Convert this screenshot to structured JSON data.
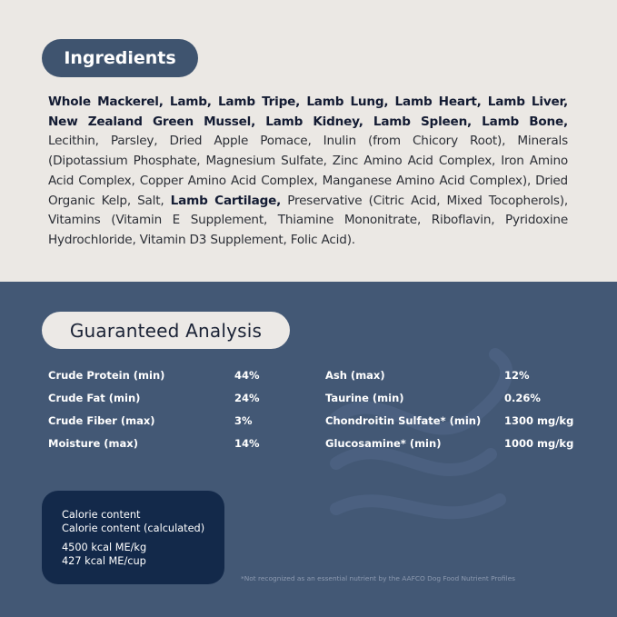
{
  "ingredients": {
    "title": "Ingredients",
    "bold_1": "Whole Mackerel, Lamb, Lamb Tripe, Lamb Lung, Lamb Heart, Lamb Liver, New Zealand Green Mussel, Lamb Kidney, Lamb Spleen, Lamb Bone,",
    "regular_1": " Lecithin, Parsley, Dried Apple Pomace, Inulin (from Chicory Root), Minerals (Dipotassium Phosphate, Magnesium Sulfate, Zinc Amino Acid Complex, Iron Amino Acid Complex, Copper Amino Acid Complex, Manganese Amino Acid Complex), Dried Organic Kelp, Salt, ",
    "bold_2": "Lamb Cartilage,",
    "regular_2": " Preservative (Citric Acid, Mixed Tocopherols), Vitamins (Vitamin E Supplement, Thiamine Mononitrate, Riboflavin, Pyridoxine Hydrochloride, Vitamin D3 Supplement, Folic Acid)."
  },
  "analysis": {
    "title": "Guaranteed Analysis",
    "left": [
      {
        "label": "Crude Protein (min)",
        "value": "44%"
      },
      {
        "label": "Crude Fat (min)",
        "value": "24%"
      },
      {
        "label": "Crude Fiber (max)",
        "value": "3%"
      },
      {
        "label": "Moisture (max)",
        "value": "14%"
      }
    ],
    "right": [
      {
        "label": "Ash (max)",
        "value": "12%"
      },
      {
        "label": "Taurine (min)",
        "value": "0.26%"
      },
      {
        "label": "Chondroitin Sulfate* (min)",
        "value": "1300 mg/kg"
      },
      {
        "label": "Glucosamine* (min)",
        "value": "1000 mg/kg"
      }
    ]
  },
  "calorie": {
    "line1": "Calorie content",
    "line2": "Calorie content (calculated)",
    "line3": "4500 kcal ME/kg",
    "line4": "427 kcal ME/cup"
  },
  "footnote": "*Not recognized as an essential nutrient by the AAFCO Dog Food Nutrient Profiles",
  "colors": {
    "top_bg": "#ebe8e4",
    "bottom_bg": "#435875",
    "calorie_box": "#13294a",
    "pill_dark": "#3f546f"
  }
}
